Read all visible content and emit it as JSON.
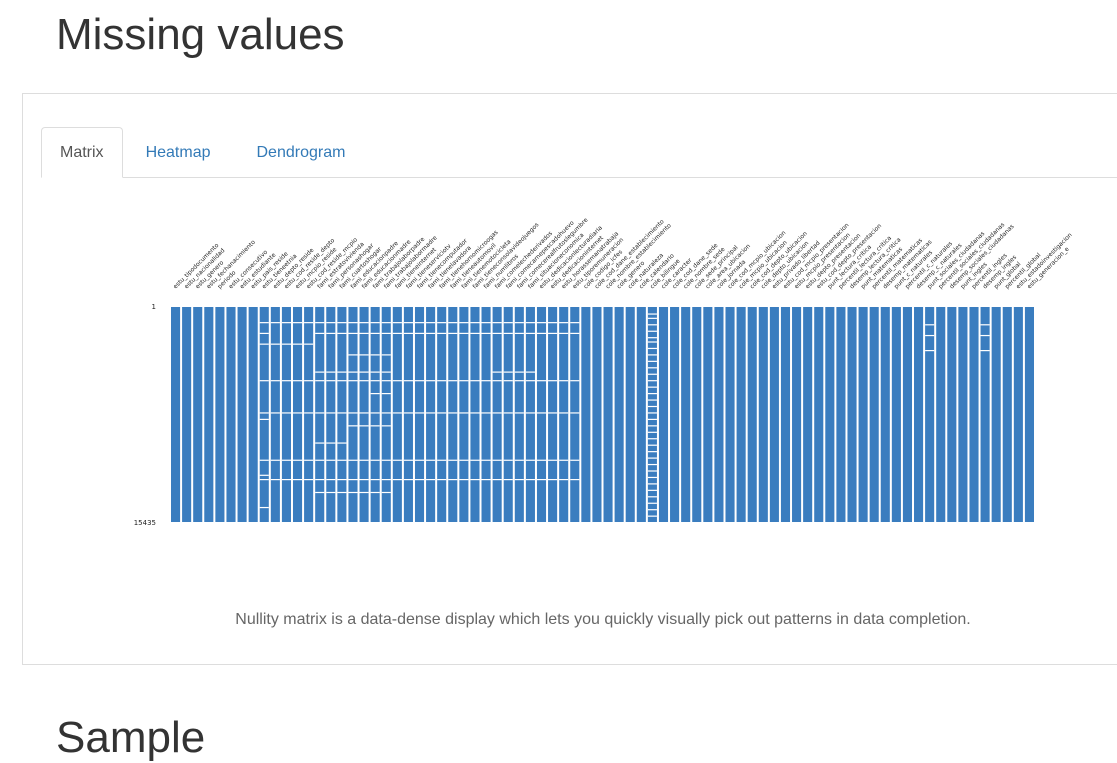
{
  "page": {
    "section_title": "Missing values",
    "next_section_title": "Sample"
  },
  "tabs": [
    {
      "label": "Matrix",
      "active": true
    },
    {
      "label": "Heatmap",
      "active": false
    },
    {
      "label": "Dendrogram",
      "active": false
    }
  ],
  "caption": "Nullity matrix is a data-dense display which lets you quickly visually pick out patterns in data completion.",
  "chart_data": {
    "type": "heatmap",
    "title": "",
    "row_labels": [
      "1",
      "15435"
    ],
    "present_color": "#3a7dbf",
    "missing_color": "#ffffff",
    "columns": [
      {
        "name": "estu_tipodocumento",
        "missing": [],
        "fill_fraction": 1.0
      },
      {
        "name": "estu_nacionalidad",
        "missing": [],
        "fill_fraction": 1.0
      },
      {
        "name": "estu_genero",
        "missing": [],
        "fill_fraction": 1.0
      },
      {
        "name": "estu_fechanacimiento",
        "missing": [],
        "fill_fraction": 1.0
      },
      {
        "name": "periodo",
        "missing": [],
        "fill_fraction": 1.0
      },
      {
        "name": "estu_consecutivo",
        "missing": [],
        "fill_fraction": 1.0
      },
      {
        "name": "estu_estudiante",
        "missing": [],
        "fill_fraction": 1.0
      },
      {
        "name": "estu_pais_reside",
        "missing": [],
        "fill_fraction": 1.0
      },
      {
        "name": "estu_tieneetnia",
        "missing": [
          0.07,
          0.12,
          0.17,
          0.34,
          0.49,
          0.52,
          0.71,
          0.78,
          0.8,
          0.93
        ],
        "fill_fraction": 0.97
      },
      {
        "name": "estu_depto_reside",
        "missing": [
          0.07,
          0.17,
          0.34,
          0.49,
          0.71,
          0.8
        ],
        "fill_fraction": 0.98
      },
      {
        "name": "estu_cod_reside_depto",
        "missing": [
          0.07,
          0.17,
          0.34,
          0.49,
          0.71,
          0.8
        ],
        "fill_fraction": 0.98
      },
      {
        "name": "estu_mcpio_reside",
        "missing": [
          0.07,
          0.17,
          0.34,
          0.49,
          0.71,
          0.8
        ],
        "fill_fraction": 0.98
      },
      {
        "name": "estu_cod_reside_mcpio",
        "missing": [
          0.07,
          0.17,
          0.34,
          0.49,
          0.71,
          0.8
        ],
        "fill_fraction": 0.98
      },
      {
        "name": "fami_estratovivienda",
        "missing": [
          0.07,
          0.12,
          0.3,
          0.34,
          0.49,
          0.63,
          0.71,
          0.8,
          0.86
        ],
        "fill_fraction": 0.97
      },
      {
        "name": "fami_personashogar",
        "missing": [
          0.07,
          0.12,
          0.3,
          0.34,
          0.49,
          0.63,
          0.71,
          0.8,
          0.86
        ],
        "fill_fraction": 0.97
      },
      {
        "name": "fami_cuartoshogar",
        "missing": [
          0.07,
          0.12,
          0.3,
          0.34,
          0.49,
          0.63,
          0.71,
          0.8,
          0.86
        ],
        "fill_fraction": 0.97
      },
      {
        "name": "fami_educacionpadre",
        "missing": [
          0.07,
          0.12,
          0.22,
          0.3,
          0.34,
          0.49,
          0.55,
          0.71,
          0.8,
          0.86
        ],
        "fill_fraction": 0.97
      },
      {
        "name": "fami_educacionmadre",
        "missing": [
          0.07,
          0.12,
          0.22,
          0.3,
          0.34,
          0.49,
          0.55,
          0.71,
          0.8,
          0.86
        ],
        "fill_fraction": 0.97
      },
      {
        "name": "fami_trabajolaborpadre",
        "missing": [
          0.07,
          0.12,
          0.22,
          0.3,
          0.34,
          0.4,
          0.49,
          0.55,
          0.71,
          0.8,
          0.86
        ],
        "fill_fraction": 0.97
      },
      {
        "name": "fami_trabajolabormadre",
        "missing": [
          0.07,
          0.12,
          0.22,
          0.3,
          0.34,
          0.4,
          0.49,
          0.55,
          0.71,
          0.8,
          0.86
        ],
        "fill_fraction": 0.97
      },
      {
        "name": "fami_tieneinternet",
        "missing": [
          0.07,
          0.12,
          0.34,
          0.49,
          0.71,
          0.8
        ],
        "fill_fraction": 0.98
      },
      {
        "name": "fami_tieneserviciotv",
        "missing": [
          0.07,
          0.12,
          0.34,
          0.49,
          0.71,
          0.8
        ],
        "fill_fraction": 0.98
      },
      {
        "name": "fami_tienecomputador",
        "missing": [
          0.07,
          0.12,
          0.34,
          0.49,
          0.71,
          0.8
        ],
        "fill_fraction": 0.98
      },
      {
        "name": "fami_tienelavadora",
        "missing": [
          0.07,
          0.12,
          0.34,
          0.49,
          0.71,
          0.8
        ],
        "fill_fraction": 0.98
      },
      {
        "name": "fami_tienehornomicroogas",
        "missing": [
          0.07,
          0.12,
          0.34,
          0.49,
          0.71,
          0.8
        ],
        "fill_fraction": 0.98
      },
      {
        "name": "fami_tieneautomovil",
        "missing": [
          0.07,
          0.12,
          0.34,
          0.49,
          0.71,
          0.8
        ],
        "fill_fraction": 0.98
      },
      {
        "name": "fami_tienemotocicleta",
        "missing": [
          0.07,
          0.12,
          0.34,
          0.49,
          0.71,
          0.8
        ],
        "fill_fraction": 0.98
      },
      {
        "name": "fami_tieneconsolavideojuegos",
        "missing": [
          0.07,
          0.12,
          0.34,
          0.49,
          0.71,
          0.8
        ],
        "fill_fraction": 0.98
      },
      {
        "name": "fami_numlibros",
        "missing": [
          0.07,
          0.12,
          0.34,
          0.49,
          0.71,
          0.8
        ],
        "fill_fraction": 0.98
      },
      {
        "name": "fami_comelechederivados",
        "missing": [
          0.07,
          0.12,
          0.3,
          0.34,
          0.49,
          0.71,
          0.8
        ],
        "fill_fraction": 0.98
      },
      {
        "name": "fami_comecarnepescadohuevo",
        "missing": [
          0.07,
          0.12,
          0.3,
          0.34,
          0.49,
          0.71,
          0.8
        ],
        "fill_fraction": 0.98
      },
      {
        "name": "fami_comecerealfrutoslegumbre",
        "missing": [
          0.07,
          0.12,
          0.3,
          0.34,
          0.49,
          0.71,
          0.8
        ],
        "fill_fraction": 0.98
      },
      {
        "name": "fami_situacioneconomica",
        "missing": [
          0.07,
          0.12,
          0.3,
          0.34,
          0.49,
          0.71,
          0.8
        ],
        "fill_fraction": 0.98
      },
      {
        "name": "estu_dedicacionlecturadiaria",
        "missing": [
          0.07,
          0.12,
          0.34,
          0.49,
          0.71,
          0.8
        ],
        "fill_fraction": 0.98
      },
      {
        "name": "estu_dedicacioninternet",
        "missing": [
          0.07,
          0.12,
          0.34,
          0.49,
          0.71,
          0.8
        ],
        "fill_fraction": 0.98
      },
      {
        "name": "estu_horassemanatrabaja",
        "missing": [
          0.07,
          0.12,
          0.34,
          0.49,
          0.71,
          0.8
        ],
        "fill_fraction": 0.98
      },
      {
        "name": "estu_tiporemuneracion",
        "missing": [
          0.07,
          0.12,
          0.34,
          0.49,
          0.71,
          0.8
        ],
        "fill_fraction": 0.98
      },
      {
        "name": "cole_codigo_icfes",
        "missing": [],
        "fill_fraction": 1.0
      },
      {
        "name": "cole_cod_dane_establecimiento",
        "missing": [],
        "fill_fraction": 1.0
      },
      {
        "name": "cole_nombre_establecimiento",
        "missing": [],
        "fill_fraction": 1.0
      },
      {
        "name": "cole_genero",
        "missing": [],
        "fill_fraction": 1.0
      },
      {
        "name": "cole_naturaleza",
        "missing": [],
        "fill_fraction": 1.0
      },
      {
        "name": "cole_calendario",
        "missing": [],
        "fill_fraction": 1.0
      },
      {
        "name": "cole_bilingue",
        "missing": [
          0.03,
          0.05,
          0.08,
          0.11,
          0.14,
          0.16,
          0.19,
          0.22,
          0.25,
          0.28,
          0.31,
          0.34,
          0.37,
          0.4,
          0.43,
          0.46,
          0.49,
          0.52,
          0.55,
          0.58,
          0.61,
          0.64,
          0.67,
          0.7,
          0.73,
          0.76,
          0.79,
          0.82,
          0.85,
          0.88,
          0.91,
          0.94,
          0.97
        ],
        "fill_fraction": 0.6
      },
      {
        "name": "cole_caracter",
        "missing": [],
        "fill_fraction": 1.0
      },
      {
        "name": "cole_cod_dane_sede",
        "missing": [],
        "fill_fraction": 1.0
      },
      {
        "name": "cole_nombre_sede",
        "missing": [],
        "fill_fraction": 1.0
      },
      {
        "name": "cole_sede_principal",
        "missing": [],
        "fill_fraction": 1.0
      },
      {
        "name": "cole_area_ubicacion",
        "missing": [],
        "fill_fraction": 1.0
      },
      {
        "name": "cole_jornada",
        "missing": [],
        "fill_fraction": 1.0
      },
      {
        "name": "cole_cod_mcpio_ubicacion",
        "missing": [],
        "fill_fraction": 1.0
      },
      {
        "name": "cole_mcpio_ubicacion",
        "missing": [],
        "fill_fraction": 1.0
      },
      {
        "name": "cole_cod_depto_ubicacion",
        "missing": [],
        "fill_fraction": 1.0
      },
      {
        "name": "cole_depto_ubicacion",
        "missing": [],
        "fill_fraction": 1.0
      },
      {
        "name": "estu_privado_libertad",
        "missing": [],
        "fill_fraction": 1.0
      },
      {
        "name": "estu_cod_mcpio_presentacion",
        "missing": [],
        "fill_fraction": 1.0
      },
      {
        "name": "estu_mcpio_presentacion",
        "missing": [],
        "fill_fraction": 1.0
      },
      {
        "name": "estu_depto_presentacion",
        "missing": [],
        "fill_fraction": 1.0
      },
      {
        "name": "estu_cod_depto_presentacion",
        "missing": [],
        "fill_fraction": 1.0
      },
      {
        "name": "punt_lectura_critica",
        "missing": [],
        "fill_fraction": 1.0
      },
      {
        "name": "percentil_lectura_critica",
        "missing": [],
        "fill_fraction": 1.0
      },
      {
        "name": "desemp_lectura_critica",
        "missing": [],
        "fill_fraction": 1.0
      },
      {
        "name": "punt_matematicas",
        "missing": [],
        "fill_fraction": 1.0
      },
      {
        "name": "percentil_matematicas",
        "missing": [],
        "fill_fraction": 1.0
      },
      {
        "name": "desemp_matematicas",
        "missing": [],
        "fill_fraction": 1.0
      },
      {
        "name": "punt_c_naturales",
        "missing": [],
        "fill_fraction": 1.0
      },
      {
        "name": "percentil_c_naturales",
        "missing": [],
        "fill_fraction": 1.0
      },
      {
        "name": "desemp_c_naturales",
        "missing": [],
        "fill_fraction": 1.0
      },
      {
        "name": "punt_sociales_ciudadanas",
        "missing": [
          0.08,
          0.13,
          0.2
        ],
        "fill_fraction": 0.99
      },
      {
        "name": "percentil_sociales_ciudadanas",
        "missing": [],
        "fill_fraction": 1.0
      },
      {
        "name": "desemp_sociales_ciudadanas",
        "missing": [],
        "fill_fraction": 1.0
      },
      {
        "name": "punt_ingles",
        "missing": [],
        "fill_fraction": 1.0
      },
      {
        "name": "percentil_ingles",
        "missing": [],
        "fill_fraction": 1.0
      },
      {
        "name": "desemp_ingles",
        "missing": [
          0.08,
          0.13,
          0.2
        ],
        "fill_fraction": 0.99
      },
      {
        "name": "punt_global",
        "missing": [],
        "fill_fraction": 1.0
      },
      {
        "name": "percentil_global",
        "missing": [],
        "fill_fraction": 1.0
      },
      {
        "name": "estu_estadoinvestigacion",
        "missing": [],
        "fill_fraction": 1.0
      },
      {
        "name": "estu_generacion_e",
        "missing": [],
        "fill_fraction": 1.0
      }
    ]
  }
}
